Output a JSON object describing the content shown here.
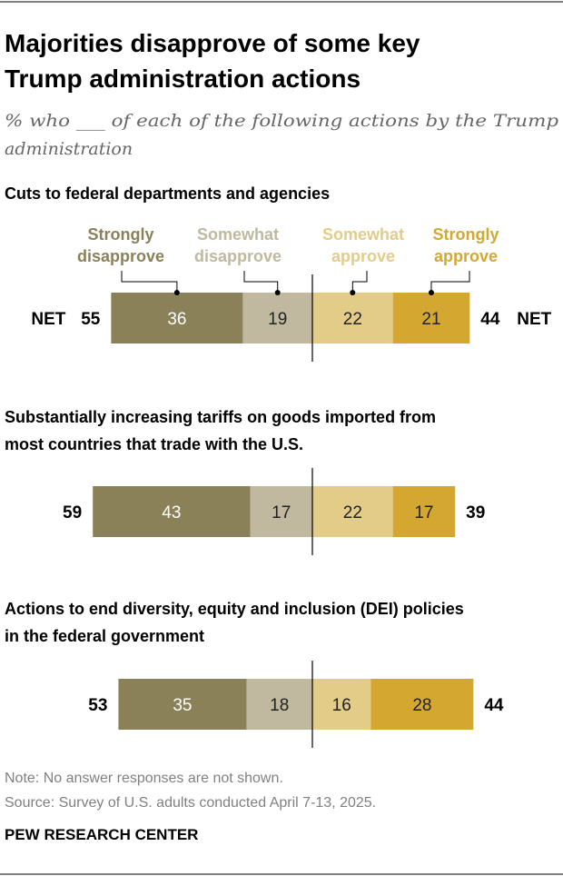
{
  "title_lines": [
    "Majorities disapprove of some key",
    "Trump administration actions"
  ],
  "subtitle_lines": [
    "% who ___ of each of the following actions by the Trump",
    "administration"
  ],
  "chart_data": {
    "type": "bar",
    "orientation": "horizontal-diverging",
    "legend": [
      {
        "label_lines": [
          "Strongly",
          "disapprove"
        ],
        "color": "#8b8159"
      },
      {
        "label_lines": [
          "Somewhat",
          "disapprove"
        ],
        "color": "#c0b99f"
      },
      {
        "label_lines": [
          "Somewhat",
          "approve"
        ],
        "color": "#e3cc88"
      },
      {
        "label_lines": [
          "Strongly",
          "approve"
        ],
        "color": "#d4a731"
      }
    ],
    "value_text_colors": [
      "#ffffff",
      "#222222",
      "#222222",
      "#222222"
    ],
    "items": [
      {
        "question_lines": [
          "Cuts to federal departments and agencies"
        ],
        "values": [
          36,
          19,
          22,
          21
        ],
        "net_disapprove": "55",
        "net_approve": "44",
        "net_prefix": "NET"
      },
      {
        "question_lines": [
          "Substantially increasing tariffs on goods imported from",
          "most countries that trade with the U.S."
        ],
        "values": [
          43,
          17,
          22,
          17
        ],
        "net_disapprove": "59",
        "net_approve": "39"
      },
      {
        "question_lines": [
          "Actions to end diversity, equity and inclusion (DEI) policies",
          "in the federal government"
        ],
        "values": [
          35,
          18,
          16,
          28
        ],
        "net_disapprove": "53",
        "net_approve": "44"
      }
    ]
  },
  "footer": {
    "note": "Note: No answer responses are not shown.",
    "source": "Source: Survey of U.S. adults conducted April 7-13, 2025.",
    "brand": "PEW RESEARCH CENTER"
  }
}
